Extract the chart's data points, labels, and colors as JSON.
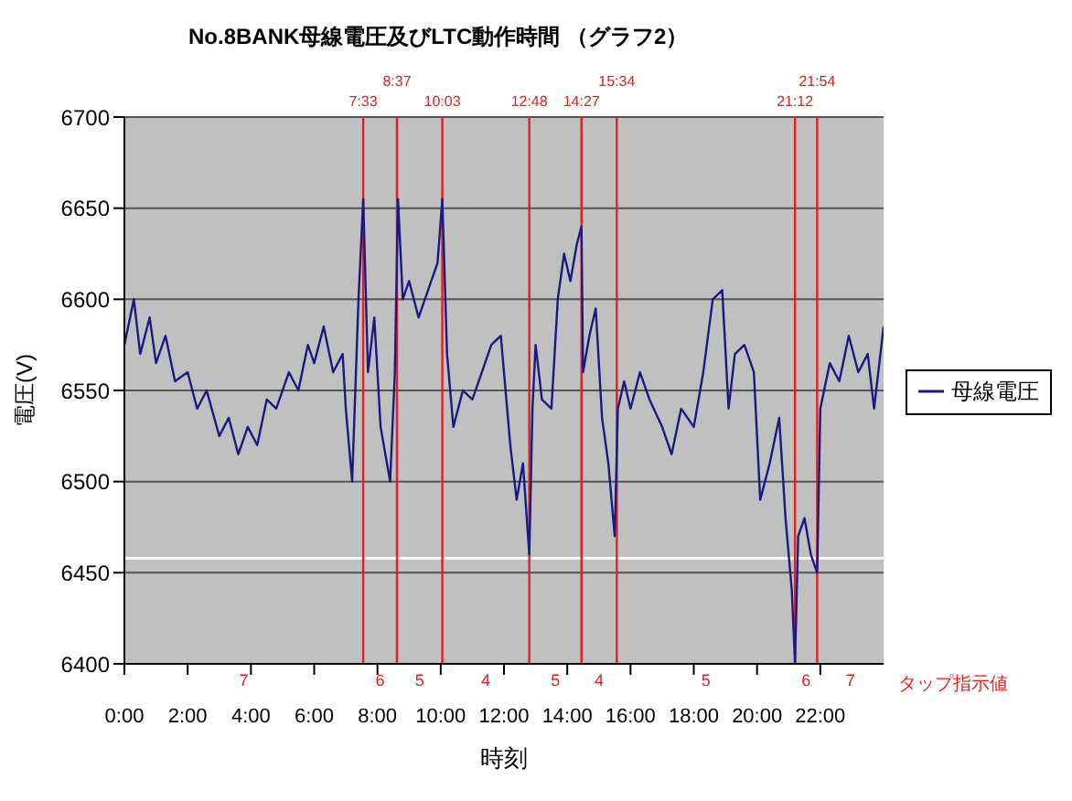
{
  "chart_data": {
    "type": "line",
    "title": "No.8BANK母線電圧及びLTC動作時間 （グラフ2）",
    "xlabel": "時刻",
    "ylabel": "電圧(V)",
    "x": [
      0,
      0.3,
      0.5,
      0.8,
      1.0,
      1.3,
      1.6,
      2.0,
      2.3,
      2.6,
      3.0,
      3.3,
      3.6,
      3.9,
      4.2,
      4.5,
      4.8,
      5.2,
      5.5,
      5.8,
      6.0,
      6.3,
      6.6,
      6.9,
      7.0,
      7.2,
      7.4,
      7.55,
      7.7,
      7.9,
      8.1,
      8.4,
      8.55,
      8.65,
      8.8,
      9.0,
      9.3,
      9.6,
      9.9,
      10.05,
      10.2,
      10.4,
      10.7,
      11.0,
      11.3,
      11.6,
      11.9,
      12.0,
      12.2,
      12.4,
      12.6,
      12.8,
      12.9,
      13.0,
      13.2,
      13.5,
      13.7,
      13.9,
      14.1,
      14.3,
      14.45,
      14.5,
      14.7,
      14.9,
      15.1,
      15.3,
      15.5,
      15.6,
      15.8,
      16.0,
      16.3,
      16.6,
      17.0,
      17.3,
      17.6,
      18.0,
      18.3,
      18.6,
      18.9,
      19.1,
      19.3,
      19.6,
      19.9,
      20.1,
      20.4,
      20.7,
      20.9,
      21.1,
      21.2,
      21.3,
      21.5,
      21.7,
      21.9,
      22.0,
      22.3,
      22.6,
      22.9,
      23.2,
      23.5,
      23.7,
      24.0
    ],
    "series": [
      {
        "name": "母線電圧",
        "color": "#1a1a80",
        "values": [
          6575,
          6600,
          6570,
          6590,
          6565,
          6580,
          6555,
          6560,
          6540,
          6550,
          6525,
          6535,
          6515,
          6530,
          6520,
          6545,
          6540,
          6560,
          6550,
          6575,
          6565,
          6585,
          6560,
          6570,
          6540,
          6500,
          6600,
          6655,
          6560,
          6590,
          6530,
          6500,
          6560,
          6655,
          6600,
          6610,
          6590,
          6605,
          6620,
          6655,
          6570,
          6530,
          6550,
          6545,
          6560,
          6575,
          6580,
          6560,
          6520,
          6490,
          6510,
          6460,
          6540,
          6575,
          6545,
          6540,
          6600,
          6625,
          6610,
          6630,
          6640,
          6560,
          6580,
          6595,
          6535,
          6510,
          6470,
          6540,
          6555,
          6540,
          6560,
          6545,
          6530,
          6515,
          6540,
          6530,
          6560,
          6600,
          6605,
          6540,
          6570,
          6575,
          6560,
          6490,
          6510,
          6535,
          6480,
          6440,
          6400,
          6470,
          6480,
          6460,
          6450,
          6540,
          6565,
          6555,
          6580,
          6560,
          6570,
          6540,
          6585
        ]
      }
    ],
    "xlim": [
      0,
      24
    ],
    "xticks": [
      {
        "value": 0,
        "label": "0:00"
      },
      {
        "value": 2,
        "label": "2:00"
      },
      {
        "value": 4,
        "label": "4:00"
      },
      {
        "value": 6,
        "label": "6:00"
      },
      {
        "value": 8,
        "label": "8:00"
      },
      {
        "value": 10,
        "label": "10:00"
      },
      {
        "value": 12,
        "label": "12:00"
      },
      {
        "value": 14,
        "label": "14:00"
      },
      {
        "value": 16,
        "label": "16:00"
      },
      {
        "value": 18,
        "label": "18:00"
      },
      {
        "value": 20,
        "label": "20:00"
      },
      {
        "value": 22,
        "label": "22:00"
      }
    ],
    "ylim": [
      6400,
      6700
    ],
    "yticks": [
      6400,
      6450,
      6500,
      6550,
      6600,
      6650,
      6700
    ],
    "grid": "y",
    "legend": "right",
    "marker": "none",
    "line_style": "solid",
    "ref_lines": [
      {
        "axis": "x",
        "value": 7.55,
        "color": "#e02020"
      },
      {
        "axis": "x",
        "value": 8.617,
        "color": "#e02020"
      },
      {
        "axis": "x",
        "value": 10.05,
        "color": "#e02020"
      },
      {
        "axis": "x",
        "value": 12.8,
        "color": "#e02020"
      },
      {
        "axis": "x",
        "value": 14.45,
        "color": "#e02020"
      },
      {
        "axis": "x",
        "value": 15.567,
        "color": "#e02020"
      },
      {
        "axis": "x",
        "value": 21.2,
        "color": "#e02020"
      },
      {
        "axis": "x",
        "value": 21.9,
        "color": "#e02020"
      },
      {
        "axis": "y",
        "value": 6458,
        "color": "#ffffff"
      }
    ],
    "annotations": [
      "7:33",
      "8:37",
      "10:03",
      "12:48",
      "14:27",
      "15:34",
      "21:12",
      "21:54",
      "7",
      "6",
      "5",
      "4",
      "5",
      "4",
      "5",
      "6",
      "7",
      "タップ指示値"
    ]
  }
}
